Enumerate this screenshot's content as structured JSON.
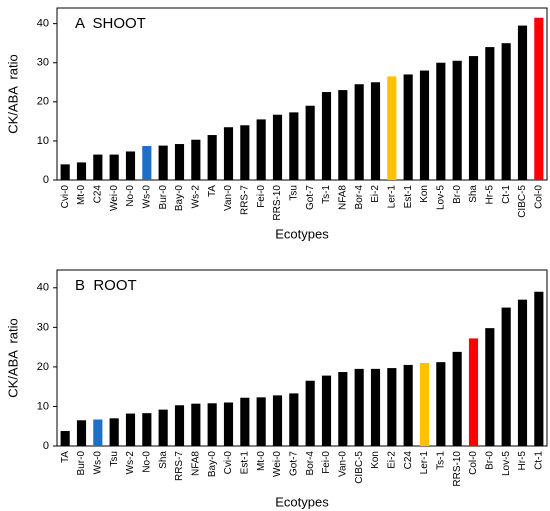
{
  "chart_data": [
    {
      "type": "bar",
      "title": "A  SHOOT",
      "y_label": "CK/ABA  ratio",
      "x_label": "Ecotypes",
      "categories": [
        "Cvi-0",
        "Mt-0",
        "C24",
        "Wei-0",
        "No-0",
        "Ws-0",
        "Bur-0",
        "Bay-0",
        "Ws-2",
        "TA",
        "Van-0",
        "RRS-7",
        "Fei-0",
        "RRS-10",
        "Tsu",
        "Got-7",
        "Ts-1",
        "NFA8",
        "Bor-4",
        "Ei-2",
        "Ler-1",
        "Est-1",
        "Kon",
        "Lov-5",
        "Br-0",
        "Sha",
        "Hr-5",
        "Ct-1",
        "CIBC-5",
        "Col-0"
      ],
      "values": [
        4,
        4.5,
        6.5,
        6.5,
        7.3,
        8.7,
        8.8,
        9.2,
        10.3,
        11.5,
        13.5,
        14,
        15.5,
        16.7,
        17.3,
        19,
        22.5,
        23,
        24.5,
        25,
        26.5,
        27,
        28,
        30,
        30.5,
        31.7,
        34,
        35,
        39.5,
        41.5
      ],
      "colors": [
        "#000000",
        "#000000",
        "#000000",
        "#000000",
        "#000000",
        "#1f6fc8",
        "#000000",
        "#000000",
        "#000000",
        "#000000",
        "#000000",
        "#000000",
        "#000000",
        "#000000",
        "#000000",
        "#000000",
        "#000000",
        "#000000",
        "#000000",
        "#000000",
        "#ffc000",
        "#000000",
        "#000000",
        "#000000",
        "#000000",
        "#000000",
        "#000000",
        "#000000",
        "#000000",
        "#ff0000"
      ],
      "ylim": [
        0,
        44
      ],
      "yticks": [
        0,
        10,
        20,
        30,
        40
      ]
    },
    {
      "type": "bar",
      "title": "B  ROOT",
      "y_label": "CK/ABA  ratio",
      "x_label": "Ecotypes",
      "categories": [
        "TA",
        "Bur-0",
        "Ws-0",
        "Tsu",
        "Ws-2",
        "No-0",
        "Sha",
        "RRS-7",
        "NFA8",
        "Bay-0",
        "Cvi-0",
        "Est-1",
        "Mt-0",
        "Wei-0",
        "Got-7",
        "Bor-4",
        "Fei-0",
        "Van-0",
        "CIBC-5",
        "Kon",
        "Ei-2",
        "C24",
        "Ler-1",
        "Ts-1",
        "RRS-10",
        "Col-0",
        "Br-0",
        "Lov-5",
        "Hr-5",
        "Ct-1"
      ],
      "values": [
        3.8,
        6.5,
        6.7,
        7,
        8.2,
        8.3,
        9.2,
        10.3,
        10.7,
        10.8,
        11,
        12.2,
        12.3,
        12.8,
        13.3,
        16.5,
        17.8,
        18.7,
        19.5,
        19.5,
        19.7,
        20.5,
        21,
        21.2,
        23.8,
        27.2,
        29.8,
        35,
        37,
        39
      ],
      "colors": [
        "#000000",
        "#000000",
        "#1f6fc8",
        "#000000",
        "#000000",
        "#000000",
        "#000000",
        "#000000",
        "#000000",
        "#000000",
        "#000000",
        "#000000",
        "#000000",
        "#000000",
        "#000000",
        "#000000",
        "#000000",
        "#000000",
        "#000000",
        "#000000",
        "#000000",
        "#000000",
        "#ffc000",
        "#000000",
        "#000000",
        "#ff0000",
        "#000000",
        "#000000",
        "#000000",
        "#000000"
      ],
      "ylim": [
        0,
        44.5
      ],
      "yticks": [
        0,
        10,
        20,
        30,
        40
      ]
    }
  ]
}
